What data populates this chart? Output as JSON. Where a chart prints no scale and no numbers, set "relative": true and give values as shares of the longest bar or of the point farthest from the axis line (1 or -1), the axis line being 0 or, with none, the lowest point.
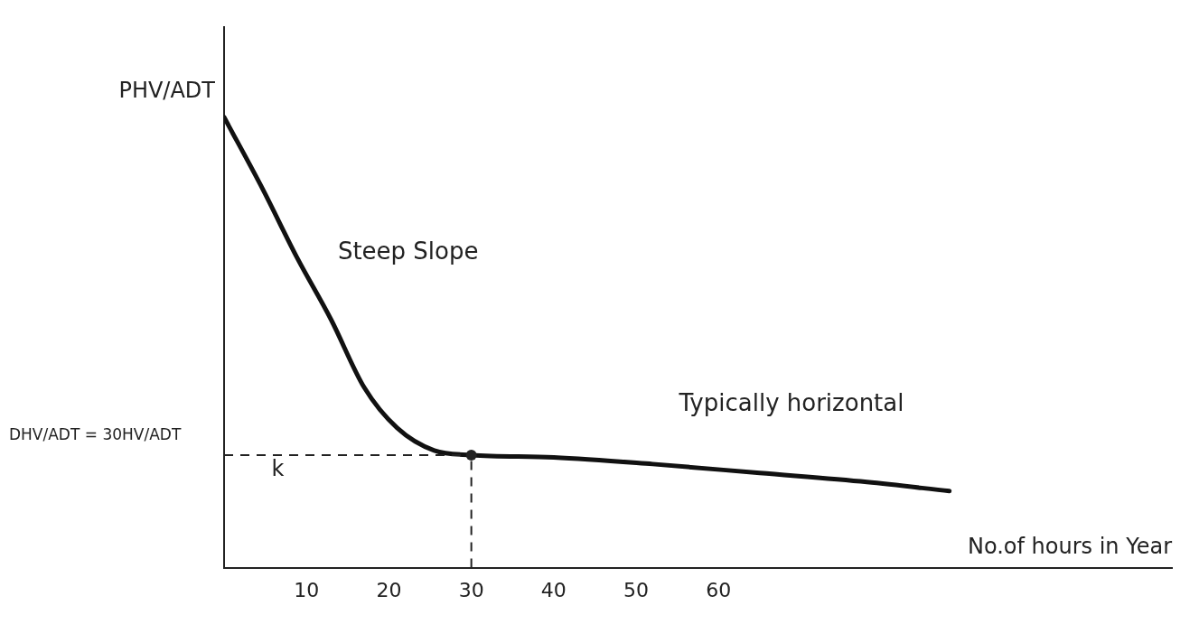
{
  "chart_data": {
    "type": "line",
    "relative": true,
    "ylabel": "PHV/ADT",
    "xlabel": "No.of hours in Year",
    "xlim": [
      0,
      115
    ],
    "xticks": [
      10,
      20,
      30,
      40,
      50,
      60
    ],
    "series": [
      {
        "color": "#111111",
        "x": [
          0,
          4.7,
          8.8,
          13,
          17,
          21,
          25.5,
          30,
          40,
          52,
          65,
          78,
          88
        ],
        "values": [
          1,
          0.84,
          0.69,
          0.55,
          0.4,
          0.31,
          0.26,
          0.25,
          0.245,
          0.23,
          0.21,
          0.19,
          0.17
        ]
      }
    ],
    "ref_lines": [
      {
        "axis": "y",
        "value": 0.25,
        "line_style": "dashed"
      },
      {
        "axis": "x",
        "value": 30,
        "line_style": "dashed"
      }
    ],
    "annotations": [
      "DHV/ADT = 30HV/ADT",
      "Steep Slope",
      "Typically horizontal",
      "k"
    ],
    "marker": "none",
    "grid": false,
    "legend": false
  }
}
